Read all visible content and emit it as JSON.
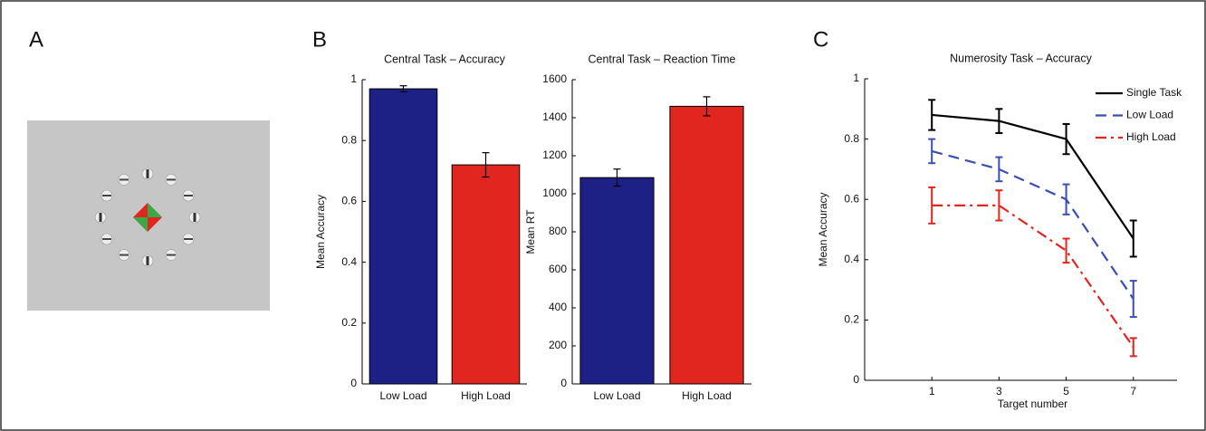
{
  "panel_labels": [
    "A",
    "B",
    "C"
  ],
  "chart_data": [
    {
      "type": "bar",
      "title": "Central Task – Accuracy",
      "ylabel": "Mean Accuracy",
      "categories": [
        "Low Load",
        "High Load"
      ],
      "values": [
        0.97,
        0.72
      ],
      "errors": [
        0.01,
        0.04
      ],
      "colors": [
        "#1d2185",
        "#e0261e"
      ],
      "ylim": [
        0,
        1
      ],
      "yticks": [
        0,
        0.2,
        0.4,
        0.6,
        0.8,
        1
      ]
    },
    {
      "type": "bar",
      "title": "Central Task – Reaction Time",
      "ylabel": "Mean RT",
      "categories": [
        "Low Load",
        "High Load"
      ],
      "values": [
        1085,
        1460
      ],
      "errors": [
        45,
        50
      ],
      "colors": [
        "#1d2185",
        "#e0261e"
      ],
      "ylim": [
        0,
        1600
      ],
      "yticks": [
        0,
        200,
        400,
        600,
        800,
        1000,
        1200,
        1400,
        1600
      ]
    },
    {
      "type": "line",
      "title": "Numerosity Task – Accuracy",
      "xlabel": "Target number",
      "ylabel": "Mean Accuracy",
      "x": [
        1,
        3,
        5,
        7
      ],
      "xlim": [
        -1,
        8.3
      ],
      "xticks": [
        1,
        3,
        5,
        7
      ],
      "ylim": [
        0,
        1
      ],
      "yticks": [
        0,
        0.2,
        0.4,
        0.6,
        0.8,
        1
      ],
      "legend": "upper right",
      "series": [
        {
          "name": "Single Task",
          "color": "#000000",
          "dash": "solid",
          "values": [
            0.88,
            0.86,
            0.8,
            0.47
          ],
          "errors": [
            0.05,
            0.04,
            0.05,
            0.06
          ]
        },
        {
          "name": "Low Load",
          "color": "#3a4fb0",
          "dash": "dashed",
          "values": [
            0.76,
            0.7,
            0.6,
            0.27
          ],
          "errors": [
            0.04,
            0.04,
            0.05,
            0.06
          ]
        },
        {
          "name": "High Load",
          "color": "#e0261e",
          "dash": "dashdot",
          "values": [
            0.58,
            0.58,
            0.43,
            0.11
          ],
          "errors": [
            0.06,
            0.05,
            0.04,
            0.03
          ]
        }
      ]
    }
  ]
}
